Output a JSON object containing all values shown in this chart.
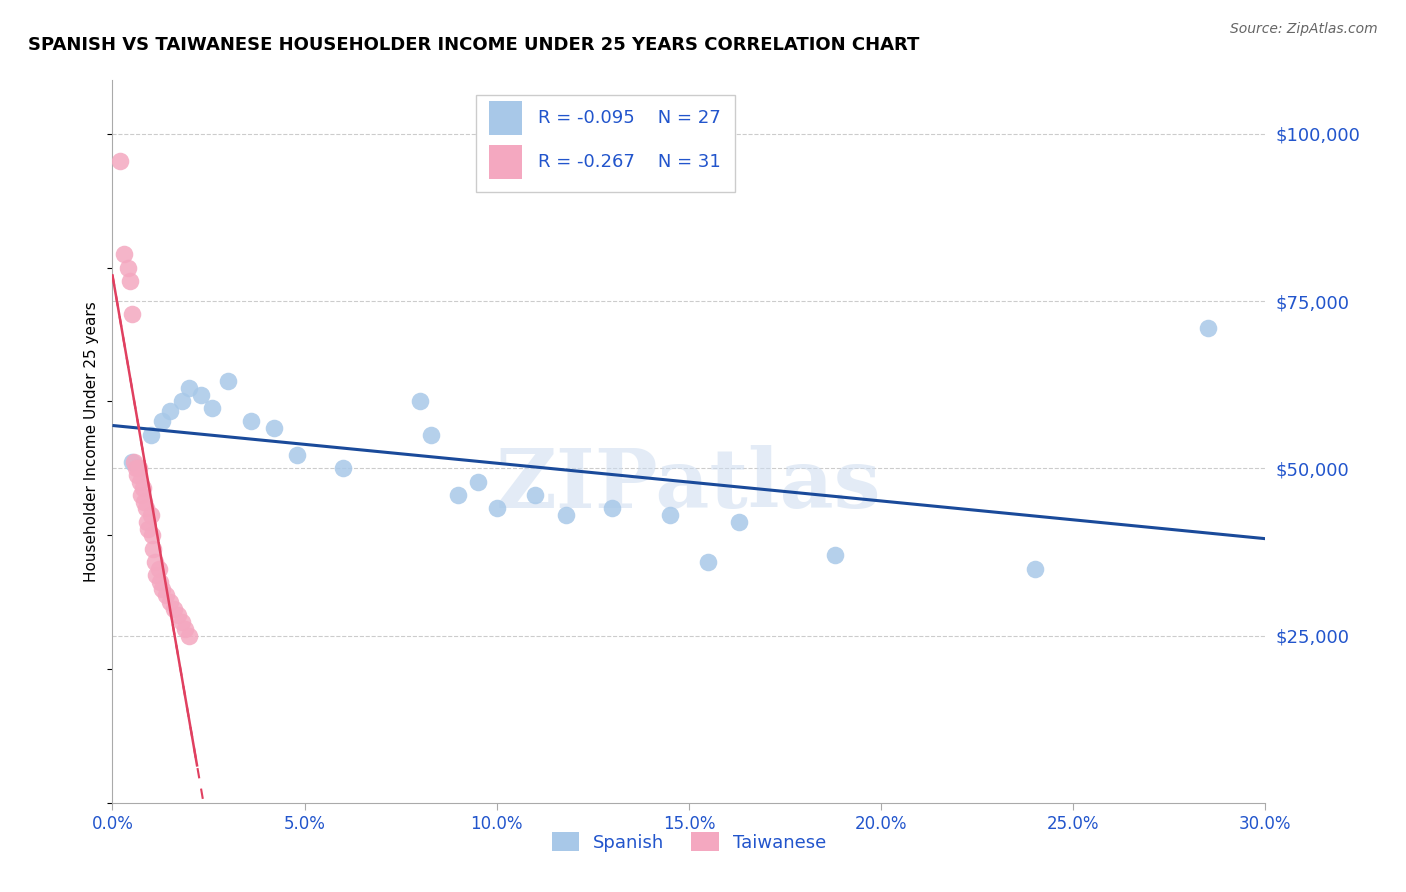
{
  "title": "SPANISH VS TAIWANESE HOUSEHOLDER INCOME UNDER 25 YEARS CORRELATION CHART",
  "source": "Source: ZipAtlas.com",
  "ylabel": "Householder Income Under 25 years",
  "xlim": [
    0.0,
    0.3
  ],
  "ylim": [
    0,
    108000
  ],
  "xticks": [
    0.0,
    0.05,
    0.1,
    0.15,
    0.2,
    0.25,
    0.3
  ],
  "xtick_labels": [
    "0.0%",
    "5.0%",
    "10.0%",
    "15.0%",
    "20.0%",
    "25.0%",
    "30.0%"
  ],
  "ytick_labels": [
    "$25,000",
    "$50,000",
    "$75,000",
    "$100,000"
  ],
  "ytick_values": [
    25000,
    50000,
    75000,
    100000
  ],
  "spanish_R": -0.095,
  "spanish_N": 27,
  "taiwanese_R": -0.267,
  "taiwanese_N": 31,
  "spanish_color": "#a8c8e8",
  "taiwanese_color": "#f4a8c0",
  "trend_spanish_color": "#1a4a9a",
  "trend_taiwanese_color": "#e04060",
  "legend_text_color": "#2255cc",
  "watermark": "ZIPatlas",
  "spanish_x": [
    0.005,
    0.01,
    0.013,
    0.015,
    0.018,
    0.02,
    0.023,
    0.026,
    0.03,
    0.036,
    0.042,
    0.048,
    0.06,
    0.08,
    0.083,
    0.09,
    0.095,
    0.1,
    0.11,
    0.118,
    0.13,
    0.145,
    0.155,
    0.163,
    0.188,
    0.24,
    0.285
  ],
  "spanish_y": [
    51000,
    55000,
    57000,
    58500,
    60000,
    62000,
    61000,
    59000,
    63000,
    57000,
    56000,
    52000,
    50000,
    60000,
    55000,
    46000,
    48000,
    44000,
    46000,
    43000,
    44000,
    43000,
    36000,
    42000,
    37000,
    35000,
    71000
  ],
  "taiwanese_x": [
    0.002,
    0.003,
    0.004,
    0.0045,
    0.005,
    0.0055,
    0.006,
    0.0065,
    0.007,
    0.0072,
    0.0075,
    0.008,
    0.0083,
    0.0086,
    0.009,
    0.0093,
    0.01,
    0.0103,
    0.0106,
    0.011,
    0.0113,
    0.012,
    0.0123,
    0.013,
    0.014,
    0.015,
    0.016,
    0.017,
    0.018,
    0.019,
    0.02
  ],
  "taiwanese_y": [
    96000,
    82000,
    80000,
    78000,
    73000,
    51000,
    50000,
    49000,
    50000,
    48000,
    46000,
    47000,
    45000,
    44000,
    42000,
    41000,
    43000,
    40000,
    38000,
    36000,
    34000,
    35000,
    33000,
    32000,
    31000,
    30000,
    29000,
    28000,
    27000,
    26000,
    25000
  ]
}
